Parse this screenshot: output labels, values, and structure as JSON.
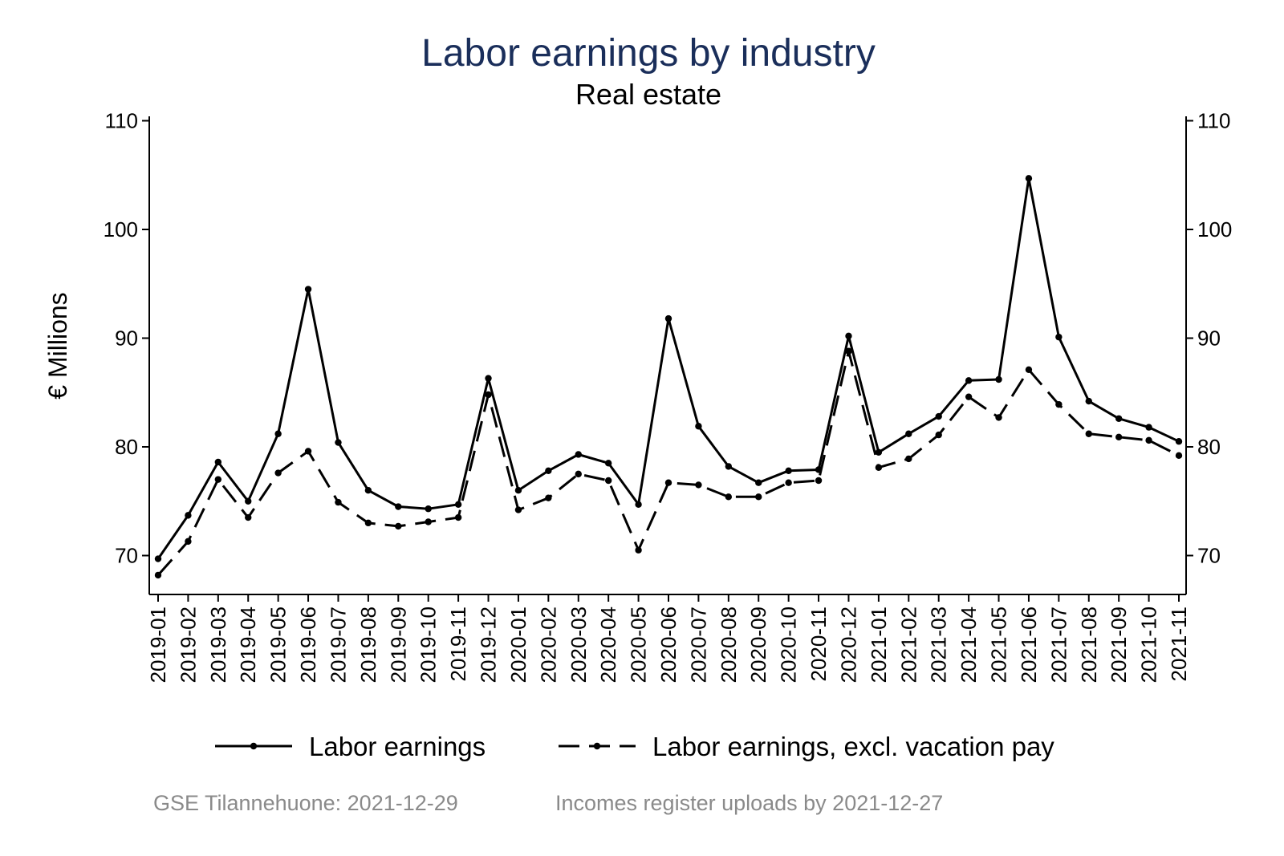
{
  "header": {
    "title": "Labor earnings by industry",
    "subtitle": "Real estate"
  },
  "footer": {
    "note_left": "GSE Tilannehuone: 2021-12-29",
    "note_right": "Incomes register uploads by 2021-12-27"
  },
  "chart_data": {
    "type": "line",
    "title": "Labor earnings by industry",
    "subtitle": "Real estate",
    "xlabel": "",
    "ylabel": "€ Millions",
    "ylim": [
      67.5,
      111.5
    ],
    "yticks": [
      70,
      80,
      90,
      100,
      110
    ],
    "grid": false,
    "legend_position": "bottom",
    "title_color": "#1a2e5a",
    "categories": [
      "2019-01",
      "2019-02",
      "2019-03",
      "2019-04",
      "2019-05",
      "2019-06",
      "2019-07",
      "2019-08",
      "2019-09",
      "2019-10",
      "2019-11",
      "2019-12",
      "2020-01",
      "2020-02",
      "2020-03",
      "2020-04",
      "2020-05",
      "2020-06",
      "2020-07",
      "2020-08",
      "2020-09",
      "2020-10",
      "2020-11",
      "2020-12",
      "2021-01",
      "2021-02",
      "2021-03",
      "2021-04",
      "2021-05",
      "2021-06",
      "2021-07",
      "2021-08",
      "2021-09",
      "2021-10",
      "2021-11"
    ],
    "series": [
      {
        "name": "Labor earnings",
        "style": "solid",
        "color": "#000000",
        "values": [
          69.7,
          73.7,
          78.6,
          75.0,
          81.2,
          94.5,
          80.4,
          76.0,
          74.5,
          74.3,
          74.7,
          86.3,
          76.0,
          77.8,
          79.3,
          78.5,
          74.7,
          91.8,
          81.9,
          78.2,
          76.7,
          77.8,
          77.9,
          90.2,
          79.5,
          81.2,
          82.8,
          86.1,
          86.2,
          104.7,
          90.1,
          84.2,
          82.6,
          81.8,
          80.5
        ]
      },
      {
        "name": "Labor earnings, excl. vacation pay",
        "style": "dashed",
        "color": "#000000",
        "values": [
          68.2,
          71.3,
          77.0,
          73.5,
          77.6,
          79.6,
          74.9,
          73.0,
          72.7,
          73.1,
          73.5,
          84.8,
          74.2,
          75.3,
          77.5,
          76.9,
          70.5,
          76.7,
          76.5,
          75.4,
          75.4,
          76.7,
          76.9,
          88.8,
          78.1,
          78.9,
          81.1,
          84.6,
          82.7,
          87.1,
          83.9,
          81.2,
          80.9,
          80.6,
          79.2
        ]
      }
    ]
  }
}
